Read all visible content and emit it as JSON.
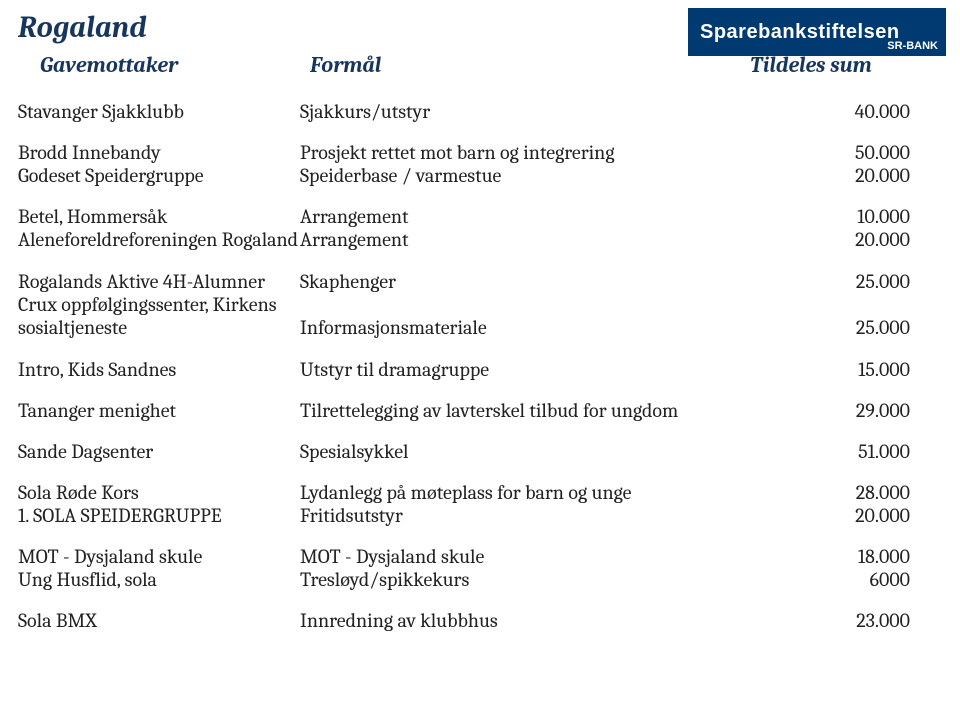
{
  "header": {
    "region": "Rogaland",
    "col_recipient": "Gavemottaker",
    "col_purpose": "Formål",
    "col_sum": "Tildeles sum"
  },
  "logo": {
    "main": "Sparebankstiftelsen",
    "sub": "SR-BANK"
  },
  "rows": [
    {
      "recipient": "Stavanger Sjakklubb",
      "purpose": "Sjakkurs/utstyr",
      "sum": "40.000",
      "gap_after": true
    },
    {
      "recipient": "Brodd Innebandy",
      "purpose": "Prosjekt rettet mot barn og integrering",
      "sum": "50.000"
    },
    {
      "recipient": "Godeset Speidergruppe",
      "purpose": "Speiderbase / varmestue",
      "sum": "20.000",
      "sum_low": true,
      "gap_after": true
    },
    {
      "recipient": "Betel, Hommersåk",
      "purpose": "Arrangement",
      "sum": "10.000"
    },
    {
      "recipient": "Aleneforeldreforeningen Rogaland",
      "purpose": "Arrangement",
      "sum": "20.000",
      "two_line": true,
      "gap_after": true
    },
    {
      "recipient": "Rogalands Aktive 4H-Alumner",
      "purpose": "Skaphenger",
      "sum": "25.000"
    },
    {
      "recipient": "Crux oppfølgingssenter, Kirkens sosialtjeneste",
      "purpose": "Informasjonsmateriale",
      "sum": "25.000",
      "two_line": true,
      "gap_after": true
    },
    {
      "recipient": "Intro, Kids Sandnes",
      "purpose": "Utstyr til dramagruppe",
      "sum": "15.000",
      "gap_after": true
    },
    {
      "recipient": "Tananger menighet",
      "purpose": "Tilrettelegging av lavterskel tilbud for ungdom",
      "sum": "29.000",
      "gap_after": true
    },
    {
      "recipient": "Sande Dagsenter",
      "purpose": "Spesialsykkel",
      "sum": "51.000",
      "gap_after": true
    },
    {
      "recipient": "Sola Røde Kors",
      "purpose": "Lydanlegg på møteplass for barn og unge",
      "sum": "28.000"
    },
    {
      "recipient": "1. SOLA SPEIDERGRUPPE",
      "purpose": "Fritidsutstyr",
      "sum": "20.000",
      "sum_low": true,
      "gap_after": true
    },
    {
      "recipient": "MOT - Dysjaland skule",
      "purpose": "MOT - Dysjaland skule",
      "sum": "18.000"
    },
    {
      "recipient": "Ung Husflid, sola",
      "purpose": "Tresløyd/spikkekurs",
      "sum": "6000",
      "sum_low": true,
      "gap_after": true
    },
    {
      "recipient": "Sola BMX",
      "purpose": "Innredning av klubbhus",
      "sum": "23.000"
    }
  ],
  "style": {
    "header_color": "#17365d",
    "text_color": "#222222",
    "logo_bg": "#003a70",
    "font_size_body": 20,
    "font_size_header": 22,
    "font_size_region": 30
  }
}
